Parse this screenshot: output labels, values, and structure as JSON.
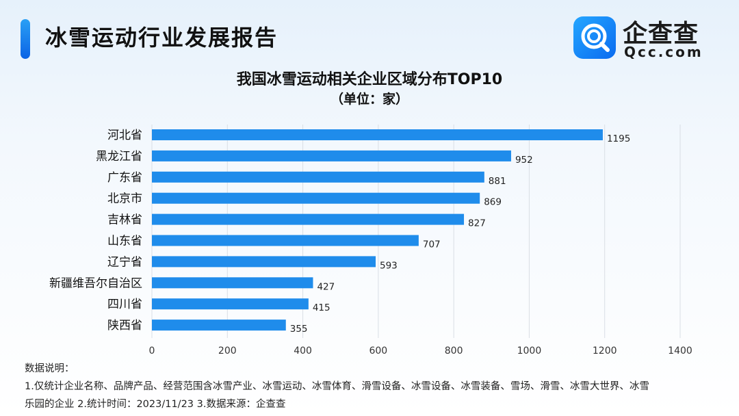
{
  "header": {
    "title": "冰雪运动行业发展报告",
    "logo_name": "企查查",
    "logo_domain": "Qcc.com",
    "logo_icon": "magnifier-q-icon"
  },
  "colors": {
    "bar": "#1f8ceb",
    "accent": "#1a84f0",
    "grid": "#d9dee5"
  },
  "chart_data": {
    "type": "bar",
    "orientation": "horizontal",
    "title": "我国冰雪运动相关企业区域分布TOP10",
    "subtitle": "（单位：家）",
    "categories": [
      "河北省",
      "黑龙江省",
      "广东省",
      "北京市",
      "吉林省",
      "山东省",
      "辽宁省",
      "新疆维吾尔自治区",
      "四川省",
      "陕西省"
    ],
    "values": [
      1195,
      952,
      881,
      869,
      827,
      707,
      593,
      427,
      415,
      355
    ],
    "xlim": [
      0,
      1400
    ],
    "xticks": [
      0,
      200,
      400,
      600,
      800,
      1000,
      1200,
      1400
    ],
    "xlabel": "",
    "ylabel": "",
    "grid": true
  },
  "notes": {
    "heading": "数据说明：",
    "line1": "1.仅统计企业名称、品牌产品、经营范围含冰雪产业、冰雪运动、冰雪体育、滑雪设备、冰雪设备、冰雪装备、雪场、滑雪、冰雪大世界、冰雪",
    "line2": "乐园的企业   2.统计时间：2023/11/23    3.数据来源：企查查"
  }
}
